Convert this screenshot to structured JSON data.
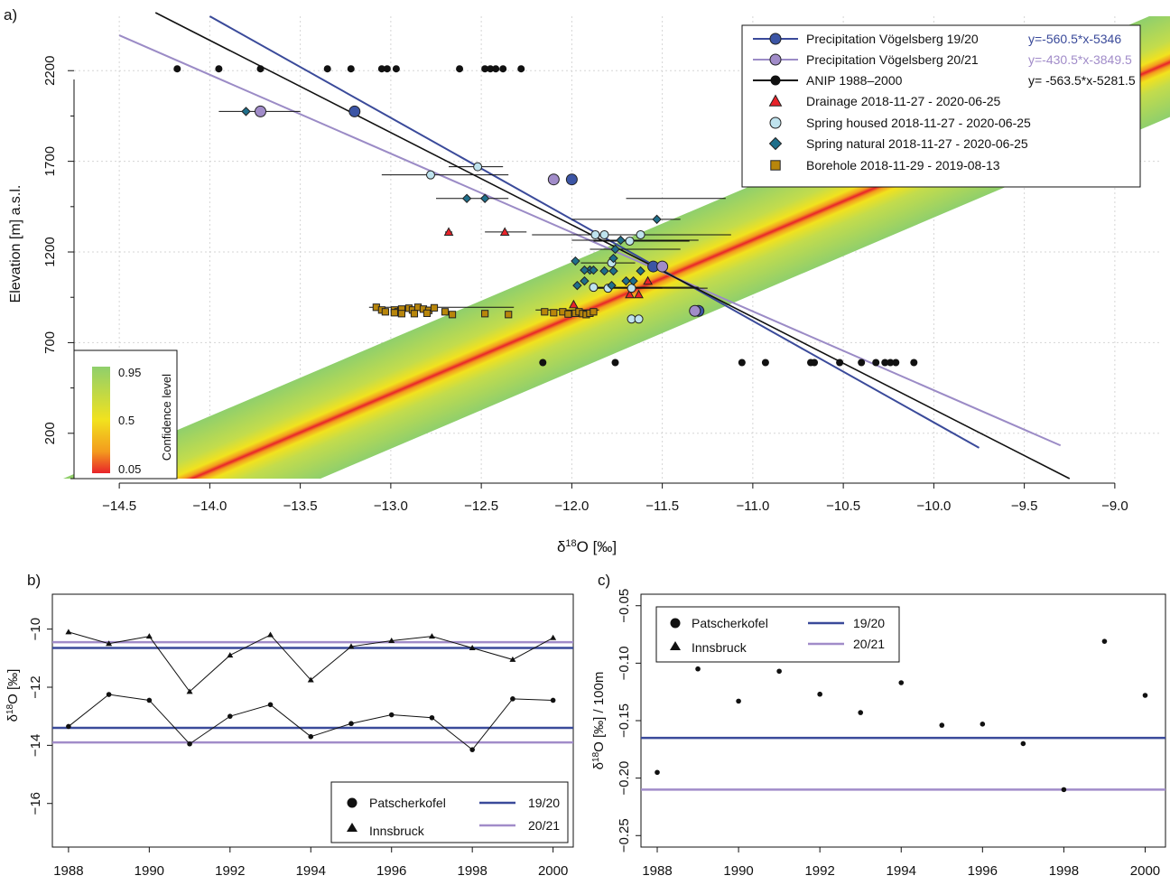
{
  "chart_data": [
    {
      "panel_label": "a)",
      "type": "scatter",
      "xlabel_main": "δ",
      "xlabel_sup": "18",
      "xlabel_rest": "O [‰]",
      "ylabel": "Elevation [m] a.s.l.",
      "xlim": [
        -14.75,
        -8.75
      ],
      "ylim": [
        -50,
        2500
      ],
      "xticks": [
        -14.5,
        -14.0,
        -13.5,
        -13.0,
        -12.5,
        -12.0,
        -11.5,
        -11.0,
        -10.5,
        -10.0,
        -9.5,
        -9.0
      ],
      "xtick_labels": [
        "−14.5",
        "−14.0",
        "−13.5",
        "−13.0",
        "−12.5",
        "−12.0",
        "−11.5",
        "−11.0",
        "−10.5",
        "−10.0",
        "−9.5",
        "−9.0"
      ],
      "yticks": [
        200,
        700,
        1200,
        1700,
        2200
      ],
      "yminor": [
        -50,
        450,
        950,
        1450,
        1950
      ],
      "grid": true,
      "confidence_band": {
        "x_at_ylow": -8.7,
        "x_at_yhigh": -14.7
      },
      "colorbar": {
        "title": "Confidence level",
        "tick_labels": [
          "0.95",
          "0.5",
          "0.05"
        ],
        "colors": [
          "#8fcf6c",
          "#f2e21e",
          "#f39a1e",
          "#e8232a"
        ]
      },
      "series": [
        {
          "name": "Precipitation Vögelsberg 19/20",
          "equation": "y=-560.5*x-5346",
          "line_color": "#3a4a9a",
          "marker_color": "#3c55a5",
          "marker": "circle",
          "points": [
            [
              -13.2,
              1975
            ],
            [
              -12.0,
              1600
            ],
            [
              -11.55,
              1120
            ],
            [
              -11.3,
              875
            ]
          ],
          "line": [
            [
              -14.0,
              2500
            ],
            [
              -9.75,
              120
            ]
          ]
        },
        {
          "name": "Precipitation Vögelsberg 20/21",
          "equation": "y=-430.5*x-3849.5",
          "line_color": "#9b8bc6",
          "marker_color": "#a18cc9",
          "marker": "circle",
          "points": [
            [
              -13.72,
              1975
            ],
            [
              -12.1,
              1600
            ],
            [
              -11.5,
              1120
            ],
            [
              -11.32,
              875
            ]
          ],
          "line": [
            [
              -14.5,
              2395
            ],
            [
              -9.3,
              133
            ]
          ]
        },
        {
          "name": "ANIP 1988–2000",
          "equation": "y= -563.5*x-5281.5",
          "line_color": "#111111",
          "marker_color": "#111111",
          "marker": "dot",
          "points": [
            [
              -14.18,
              2210
            ],
            [
              -13.95,
              2210
            ],
            [
              -13.72,
              2210
            ],
            [
              -13.35,
              2210
            ],
            [
              -13.22,
              2210
            ],
            [
              -13.05,
              2210
            ],
            [
              -13.02,
              2210
            ],
            [
              -12.97,
              2210
            ],
            [
              -12.62,
              2210
            ],
            [
              -12.48,
              2210
            ],
            [
              -12.45,
              2210
            ],
            [
              -12.42,
              2210
            ],
            [
              -12.38,
              2210
            ],
            [
              -12.28,
              2210
            ],
            [
              -12.16,
              590
            ],
            [
              -11.76,
              590
            ],
            [
              -11.06,
              590
            ],
            [
              -10.93,
              590
            ],
            [
              -10.68,
              590
            ],
            [
              -10.66,
              590
            ],
            [
              -10.52,
              590
            ],
            [
              -10.4,
              590
            ],
            [
              -10.32,
              590
            ],
            [
              -10.27,
              590
            ],
            [
              -10.24,
              590
            ],
            [
              -10.21,
              590
            ],
            [
              -10.11,
              590
            ]
          ],
          "line": [
            [
              -14.3,
              2520
            ],
            [
              -9.25,
              -50
            ]
          ]
        },
        {
          "name": "Drainage 2018-11-27 - 2020-06-25",
          "marker": "triangle",
          "marker_color": "#e8232a",
          "points": [
            [
              -12.68,
              1310
            ],
            [
              -12.37,
              1310
            ],
            [
              -11.58,
              1040
            ],
            [
              -11.68,
              965
            ],
            [
              -11.63,
              965
            ],
            [
              -11.99,
              910
            ]
          ],
          "xerr": [
            [
              -12.7,
              -12.66
            ],
            [
              -12.48,
              -12.25
            ]
          ]
        },
        {
          "name": "Spring housed 2018-11-27 - 2020-06-25",
          "marker": "circle",
          "marker_color": "#bfe3ee",
          "points": [
            [
              -12.78,
              1625
            ],
            [
              -12.52,
              1670
            ],
            [
              -11.87,
              1295
            ],
            [
              -11.82,
              1295
            ],
            [
              -11.62,
              1295
            ],
            [
              -11.68,
              1260
            ],
            [
              -11.78,
              1140
            ],
            [
              -11.88,
              1005
            ],
            [
              -11.8,
              1000
            ],
            [
              -11.67,
              1000
            ],
            [
              -11.67,
              830
            ],
            [
              -11.63,
              830
            ]
          ],
          "xerr": [
            [
              -13.05,
              -12.35
            ],
            [
              -12.68,
              -12.38
            ],
            [
              -12.22,
              -11.38
            ],
            [
              -11.88,
              -11.18
            ],
            [
              -11.9,
              -11.12
            ],
            [
              -11.88,
              -11.35
            ],
            [
              -11.95,
              -11.65
            ],
            [
              -11.9,
              -11.3
            ],
            [
              -11.9,
              -11.5
            ],
            [
              -11.9,
              -11.25
            ]
          ]
        },
        {
          "name": "Spring natural 2018-11-27 - 2020-06-25",
          "marker": "diamond",
          "marker_color": "#1f6f8b",
          "points": [
            [
              -13.8,
              1975
            ],
            [
              -12.58,
              1495
            ],
            [
              -12.48,
              1495
            ],
            [
              -11.53,
              1380
            ],
            [
              -11.73,
              1265
            ],
            [
              -11.76,
              1215
            ],
            [
              -11.77,
              1165
            ],
            [
              -11.98,
              1150
            ],
            [
              -11.9,
              1100
            ],
            [
              -11.93,
              1100
            ],
            [
              -11.88,
              1100
            ],
            [
              -11.82,
              1095
            ],
            [
              -11.77,
              1095
            ],
            [
              -11.62,
              1095
            ],
            [
              -11.93,
              1040
            ],
            [
              -11.7,
              1040
            ],
            [
              -11.66,
              1040
            ],
            [
              -11.97,
              1015
            ],
            [
              -11.78,
              1015
            ]
          ],
          "xerr": [
            [
              -13.95,
              -13.5
            ],
            [
              -12.75,
              -12.35
            ],
            [
              -11.7,
              -11.15
            ],
            [
              -12.0,
              -11.4
            ],
            [
              -12.0,
              -11.3
            ],
            [
              -11.9,
              -11.4
            ]
          ]
        },
        {
          "name": "Borehole 2018-11-29 - 2019-08-13",
          "marker": "square",
          "marker_color": "#b8860b",
          "points": [
            [
              -13.08,
              895
            ],
            [
              -13.05,
              880
            ],
            [
              -13.03,
              870
            ],
            [
              -12.98,
              880
            ],
            [
              -12.96,
              870
            ],
            [
              -12.94,
              885
            ],
            [
              -12.9,
              890
            ],
            [
              -12.88,
              880
            ],
            [
              -12.85,
              895
            ],
            [
              -12.82,
              885
            ],
            [
              -12.79,
              878
            ],
            [
              -12.76,
              892
            ],
            [
              -12.7,
              870
            ],
            [
              -12.66,
              855
            ],
            [
              -12.48,
              860
            ],
            [
              -12.35,
              855
            ],
            [
              -12.15,
              870
            ],
            [
              -12.1,
              865
            ],
            [
              -12.05,
              870
            ],
            [
              -12.02,
              858
            ],
            [
              -11.98,
              862
            ],
            [
              -11.96,
              870
            ],
            [
              -11.94,
              860
            ],
            [
              -11.92,
              855
            ],
            [
              -11.9,
              862
            ],
            [
              -11.88,
              870
            ],
            [
              -12.94,
              860
            ],
            [
              -12.87,
              860
            ],
            [
              -12.8,
              862
            ],
            [
              -12.98,
              865
            ]
          ],
          "xerr": [
            [
              -13.12,
              -12.32
            ],
            [
              -12.2,
              -11.85
            ]
          ]
        }
      ]
    },
    {
      "panel_label": "b)",
      "type": "line",
      "ylabel_main": "δ",
      "ylabel_sup": "18",
      "ylabel_rest": "O [‰]",
      "xlim": [
        1987.6,
        2000.5
      ],
      "ylim": [
        -17.5,
        -8.8
      ],
      "xticks": [
        1988,
        1990,
        1992,
        1994,
        1996,
        1998,
        2000
      ],
      "yticks": [
        -16,
        -14,
        -12,
        -10
      ],
      "ytick_labels": [
        "−16",
        "−14",
        "−12",
        "−10"
      ],
      "x": [
        1988,
        1989,
        1990,
        1991,
        1992,
        1993,
        1994,
        1995,
        1996,
        1997,
        1998,
        1999,
        2000
      ],
      "series": [
        {
          "name": "Patscherkofel",
          "marker": "circle",
          "values": [
            -13.35,
            -12.25,
            -12.45,
            -13.95,
            -13.0,
            -12.6,
            -13.7,
            -13.25,
            -12.95,
            -13.05,
            -14.15,
            -12.4,
            -12.45
          ]
        },
        {
          "name": "Innsbruck",
          "marker": "triangle",
          "values": [
            -10.1,
            -10.5,
            -10.25,
            -12.15,
            -10.9,
            -10.2,
            -11.75,
            -10.6,
            -10.4,
            -10.25,
            -10.65,
            -11.05,
            -10.3
          ]
        }
      ],
      "hlines": [
        {
          "name": "19/20",
          "color": "#3a4a9a",
          "values": [
            -10.65,
            -13.4
          ]
        },
        {
          "name": "20/21",
          "color": "#a18cc9",
          "values": [
            -10.45,
            -13.9
          ]
        }
      ]
    },
    {
      "panel_label": "c)",
      "type": "scatter",
      "ylabel_main": "δ",
      "ylabel_sup": "18",
      "ylabel_rest": "O [‰] / 100m",
      "xlim": [
        1987.6,
        2000.5
      ],
      "ylim": [
        -0.26,
        -0.04
      ],
      "xticks": [
        1988,
        1990,
        1992,
        1994,
        1996,
        1998,
        2000
      ],
      "yticks": [
        -0.25,
        -0.2,
        -0.15,
        -0.1,
        -0.05
      ],
      "ytick_labels": [
        "−0.25",
        "−0.20",
        "−0.15",
        "−0.10",
        "−0.05"
      ],
      "x": [
        1988,
        1989,
        1990,
        1991,
        1992,
        1993,
        1994,
        1995,
        1996,
        1997,
        1998,
        1999,
        2000
      ],
      "series": [
        {
          "name": "Patscherkofel",
          "marker": "dot",
          "values": [
            -0.195,
            -0.105,
            -0.133,
            -0.107,
            -0.127,
            -0.143,
            -0.117,
            -0.154,
            -0.153,
            -0.17,
            -0.21,
            -0.081,
            -0.128
          ]
        }
      ],
      "legend_entries": [
        {
          "name": "Patscherkofel",
          "marker": "circle"
        },
        {
          "name": "Innsbruck",
          "marker": "triangle"
        }
      ],
      "hlines": [
        {
          "name": "19/20",
          "color": "#3a4a9a",
          "value": -0.165
        },
        {
          "name": "20/21",
          "color": "#a18cc9",
          "value": -0.21
        }
      ]
    }
  ]
}
